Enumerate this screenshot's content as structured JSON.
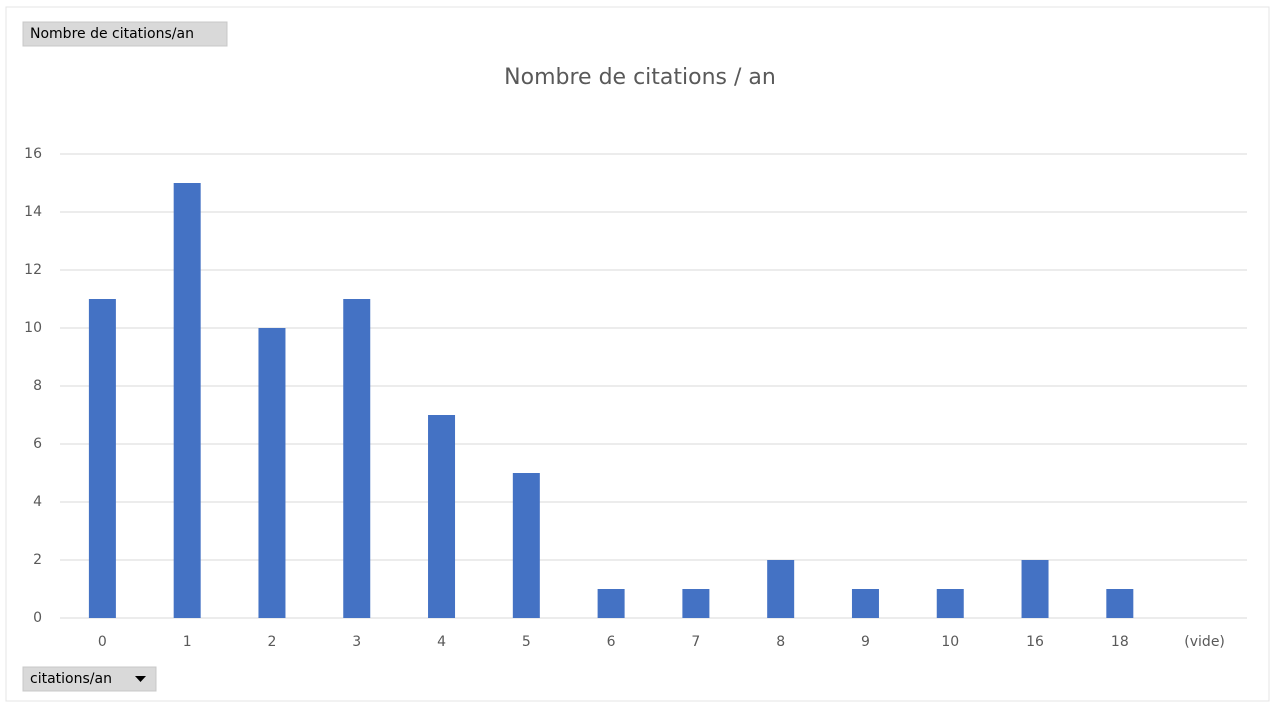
{
  "chart_data": {
    "type": "bar",
    "title": "Nombre de citations / an",
    "value_field_button": "Nombre de citations/an",
    "axis_field_button": "citations/an",
    "categories": [
      "0",
      "1",
      "2",
      "3",
      "4",
      "5",
      "6",
      "7",
      "8",
      "9",
      "10",
      "16",
      "18",
      "(vide)"
    ],
    "values": [
      11,
      15,
      10,
      11,
      7,
      5,
      1,
      1,
      2,
      1,
      1,
      2,
      1,
      null
    ],
    "color": "#4472c4",
    "ylim": [
      0,
      16
    ],
    "yticks": [
      0,
      2,
      4,
      6,
      8,
      10,
      12,
      14,
      16
    ],
    "grid": true
  }
}
